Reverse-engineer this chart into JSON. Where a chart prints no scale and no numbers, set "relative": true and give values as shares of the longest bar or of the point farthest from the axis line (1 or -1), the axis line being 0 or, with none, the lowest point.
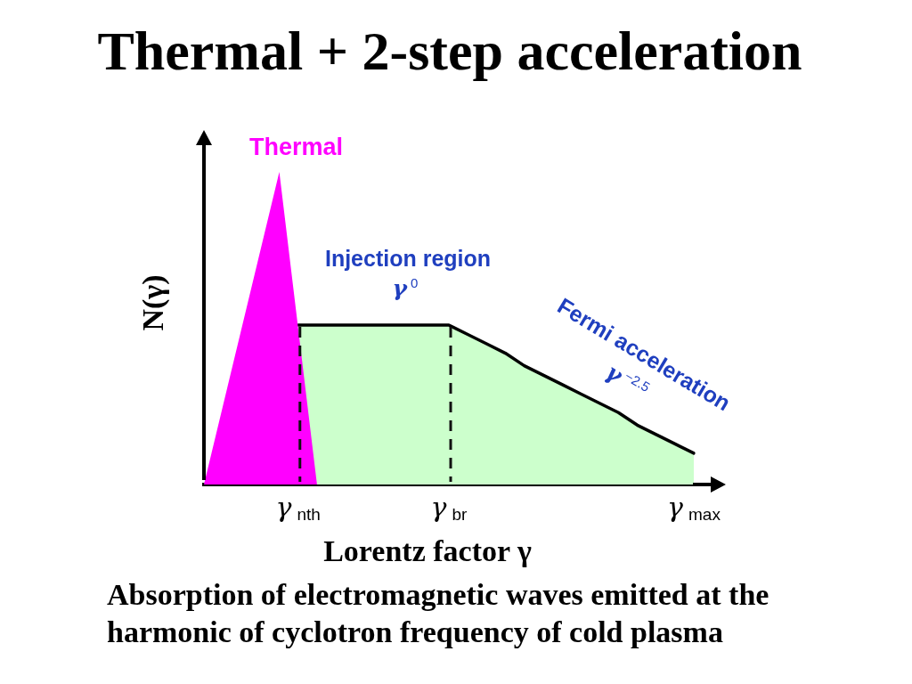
{
  "chart_data": {
    "type": "area",
    "title": "Thermal + 2-step acceleration",
    "xlabel": "Lorentz factor γ",
    "ylabel": "N(γ)",
    "categories": [
      null,
      null,
      null,
      null,
      null,
      "γ$_{nth}$",
      null,
      null,
      null,
      null,
      null,
      null,
      null,
      "γ$_{br}$",
      null,
      null,
      null,
      null,
      null,
      null,
      null,
      null,
      null,
      null,
      null,
      null,
      "γ$_{max}$"
    ],
    "relative": true,
    "series": [
      {
        "type": "area",
        "color": "#ccffcc",
        "line_style": "solid",
        "values": [
          null,
          null,
          null,
          null,
          null,
          0.51,
          0.51,
          0.51,
          0.51,
          0.51,
          0.51,
          0.51,
          0.51,
          0.51,
          0.48,
          0.45,
          0.42,
          0.38,
          0.35,
          0.32,
          0.29,
          0.26,
          0.23,
          0.19,
          0.16,
          0.13,
          0.1
        ]
      },
      {
        "type": "area",
        "name": "Thermal",
        "color": "#ff00ff",
        "values": [
          0,
          0.25,
          0.5,
          0.75,
          1,
          0.5,
          0,
          null,
          null,
          null,
          null,
          null,
          null,
          null,
          null,
          null,
          null,
          null,
          null,
          null,
          null,
          null,
          null,
          null,
          null,
          null,
          null
        ]
      }
    ],
    "ref_lines": [
      {
        "axis": "x",
        "value": "γ$_{nth}$",
        "color": "#111111",
        "line_style": "dashed"
      },
      {
        "axis": "x",
        "value": "γ$_{br}$",
        "color": "#111111",
        "line_style": "dashed"
      }
    ],
    "annotations": [
      "Injection region",
      "γ$^{0}$",
      "Fermi acceleration",
      "γ$^{−2.5}$",
      "Absorption of electromagnetic waves emitted at the harmonic of cyclotron frequency of cold plasma"
    ],
    "grid": false,
    "legend": false,
    "marker": "none"
  }
}
